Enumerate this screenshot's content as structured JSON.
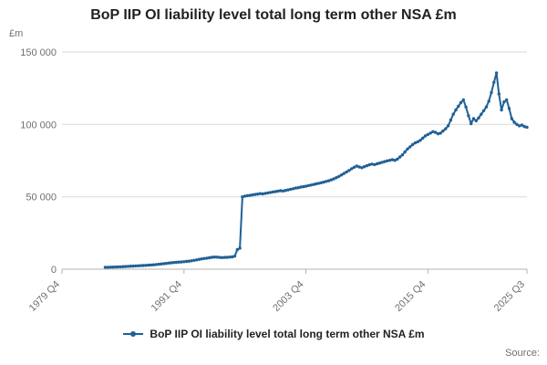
{
  "chart_data": {
    "type": "line",
    "title": "BoP IIP OI liability level total long term other NSA £m",
    "ylabel": "£m",
    "xlabel": "",
    "x_range": [
      "1979 Q4",
      "2025 Q3"
    ],
    "x_ticks": [
      "1979 Q4",
      "1991 Q4",
      "2003 Q4",
      "2015 Q4",
      "2025 Q3"
    ],
    "ylim": [
      0,
      150000
    ],
    "y_ticks": [
      0,
      50000,
      100000,
      150000
    ],
    "y_tick_labels": [
      "0",
      "50 000",
      "100 000",
      "150 000"
    ],
    "grid": "horizontal",
    "legend_position": "bottom",
    "series": [
      {
        "name": "BoP IIP OI liability level total long term other NSA £m",
        "color": "#206095",
        "frequency": "quarterly",
        "start": "1984 Q1",
        "values": [
          1300,
          1350,
          1400,
          1450,
          1500,
          1550,
          1650,
          1750,
          1850,
          1950,
          2050,
          2150,
          2250,
          2350,
          2450,
          2550,
          2650,
          2750,
          2900,
          3050,
          3200,
          3400,
          3600,
          3800,
          4000,
          4200,
          4400,
          4600,
          4750,
          4900,
          5000,
          5150,
          5350,
          5550,
          5800,
          6100,
          6450,
          6800,
          7100,
          7350,
          7600,
          7900,
          8200,
          8400,
          8300,
          8100,
          8000,
          8100,
          8200,
          8300,
          8500,
          9000,
          13500,
          14500,
          50000,
          50500,
          50800,
          51000,
          51300,
          51600,
          51900,
          52200,
          52000,
          52400,
          52700,
          53000,
          53300,
          53600,
          53900,
          54200,
          54000,
          54400,
          54800,
          55200,
          55600,
          56000,
          56300,
          56700,
          57000,
          57300,
          57700,
          58100,
          58500,
          58900,
          59300,
          59700,
          60100,
          60600,
          61100,
          61700,
          62400,
          63200,
          64100,
          65100,
          66100,
          67100,
          68200,
          69400,
          70400,
          71200,
          70600,
          70100,
          70800,
          71500,
          72100,
          72600,
          72200,
          72800,
          73300,
          73800,
          74300,
          74800,
          75200,
          75600,
          75200,
          76000,
          77500,
          79000,
          81000,
          83000,
          84500,
          86000,
          87200,
          88000,
          89000,
          90500,
          92000,
          93000,
          94000,
          95000,
          94500,
          93500,
          94000,
          95500,
          97000,
          99000,
          103000,
          107000,
          110000,
          112500,
          115000,
          117000,
          112000,
          106000,
          100500,
          104000,
          102500,
          104500,
          107000,
          109500,
          112000,
          116000,
          122000,
          129000,
          135500,
          121000,
          110000,
          115500,
          117000,
          111000,
          104000,
          101500,
          100000,
          99000,
          99500,
          98500,
          98000
        ]
      }
    ]
  },
  "legend": {
    "label": "BoP IIP OI liability level total long term other NSA £m"
  },
  "footer": {
    "source_label": "Source:"
  },
  "colors": {
    "line": "#206095",
    "grid": "#d9d9d9",
    "axis": "#b3b3b3",
    "text": "#222222",
    "muted": "#707071"
  }
}
